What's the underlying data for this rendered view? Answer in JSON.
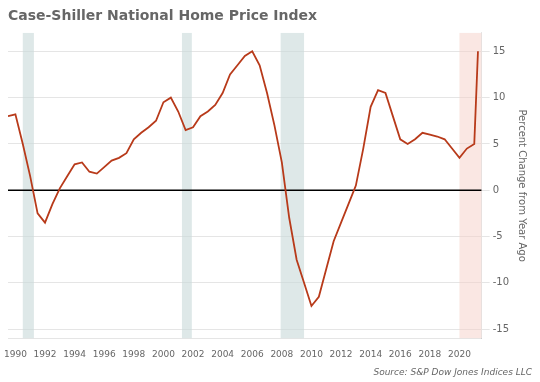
{
  "chart_data": {
    "type": "line",
    "title": "Case-Shiller National Home Price Index",
    "y_label": "Percent Change from Year Ago",
    "annotation": "Source: S&P Dow Jones Indices LLC",
    "x": [
      1989.5,
      1990.0,
      1990.5,
      1991.0,
      1991.5,
      1992.0,
      1992.5,
      1993.0,
      1993.5,
      1994.0,
      1994.5,
      1995.0,
      1995.5,
      1996.0,
      1996.5,
      1997.0,
      1997.5,
      1998.0,
      1998.5,
      1999.0,
      1999.5,
      2000.0,
      2000.5,
      2001.0,
      2001.5,
      2002.0,
      2002.5,
      2003.0,
      2003.5,
      2004.0,
      2004.5,
      2005.0,
      2005.5,
      2006.0,
      2006.5,
      2007.0,
      2007.5,
      2008.0,
      2008.5,
      2009.0,
      2009.5,
      2010.0,
      2010.5,
      2011.0,
      2011.5,
      2012.0,
      2012.5,
      2013.0,
      2013.5,
      2014.0,
      2014.5,
      2015.0,
      2015.5,
      2016.0,
      2016.5,
      2017.0,
      2017.5,
      2018.0,
      2018.5,
      2019.0,
      2019.5,
      2020.0,
      2020.5,
      2021.0,
      2021.25
    ],
    "values": [
      8.0,
      8.2,
      5.0,
      1.5,
      -2.5,
      -3.5,
      -1.5,
      0.2,
      1.5,
      2.8,
      3.0,
      2.0,
      1.8,
      2.5,
      3.2,
      3.5,
      4.0,
      5.5,
      6.2,
      6.8,
      7.5,
      9.5,
      10.0,
      8.5,
      6.5,
      6.8,
      8.0,
      8.5,
      9.2,
      10.5,
      12.5,
      13.5,
      14.5,
      15.0,
      13.5,
      10.5,
      7.0,
      3.0,
      -3.0,
      -7.5,
      -10.0,
      -12.5,
      -11.5,
      -8.5,
      -5.5,
      -3.5,
      -1.5,
      0.5,
      4.5,
      9.0,
      10.8,
      10.5,
      8.0,
      5.5,
      5.0,
      5.5,
      6.2,
      6.0,
      5.8,
      5.5,
      4.5,
      3.5,
      4.5,
      5.0,
      15.0
    ],
    "color": "#b83a1a",
    "xlim": [
      1989.5,
      2021.5
    ],
    "xticks": [
      1990,
      1992,
      1994,
      1996,
      1998,
      2000,
      2002,
      2004,
      2006,
      2008,
      2010,
      2012,
      2014,
      2016,
      2018,
      2020
    ],
    "ylim": [
      -16,
      17
    ],
    "yticks": [
      -15,
      -10,
      -5,
      0,
      5,
      10,
      15
    ],
    "grid": "y",
    "recessions": {
      "ranges": [
        [
          1990.5,
          1991.25
        ],
        [
          2001.25,
          2001.92
        ],
        [
          2007.92,
          2009.5
        ]
      ],
      "color": "#c8d8d8"
    },
    "recent_period": {
      "range": [
        2020.0,
        2021.5
      ],
      "color": "#f5d0c8"
    },
    "hlines": [
      {
        "y": 0,
        "color": "black"
      }
    ]
  }
}
